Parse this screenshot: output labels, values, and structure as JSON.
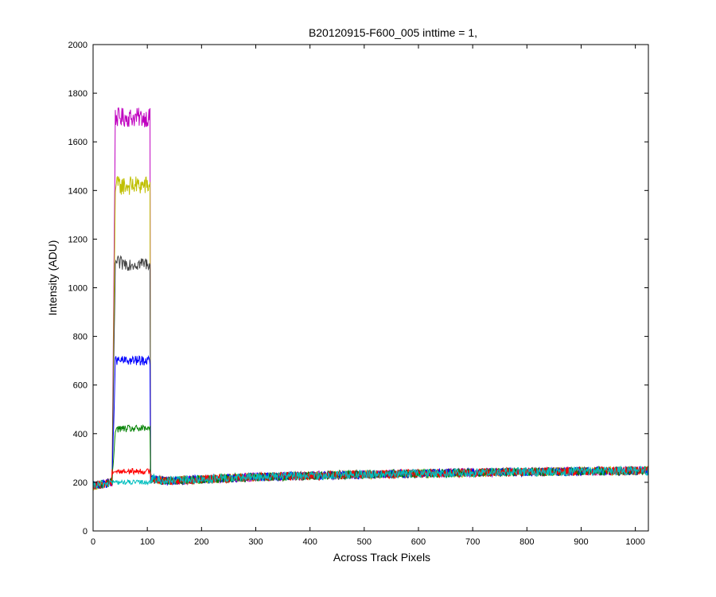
{
  "chart_data": {
    "type": "line",
    "title": "B20120915-F600_005 inttime = 1,",
    "xlabel": "Across Track Pixels",
    "ylabel": "Intensity (ADU)",
    "xlim": [
      0,
      1024
    ],
    "ylim": [
      0,
      2000
    ],
    "xticks": [
      0,
      100,
      200,
      300,
      400,
      500,
      600,
      700,
      800,
      900,
      1000
    ],
    "yticks": [
      0,
      200,
      400,
      600,
      800,
      1000,
      1200,
      1400,
      1600,
      1800,
      2000
    ],
    "grid": false,
    "legend": "none",
    "baseline": {
      "x": [
        0,
        35,
        100,
        110,
        130,
        300,
        500,
        700,
        900,
        1024
      ],
      "y": [
        185,
        200,
        215,
        215,
        205,
        222,
        232,
        240,
        245,
        248
      ]
    },
    "pulse_x_range": [
      35,
      105
    ],
    "series": [
      {
        "color": "#bf00bf",
        "plateau": 1700,
        "noise": 40
      },
      {
        "color": "#bfbf00",
        "plateau": 1420,
        "noise": 40
      },
      {
        "color": "#404040",
        "plateau": 1100,
        "noise": 30
      },
      {
        "color": "#0000ff",
        "plateau": 700,
        "noise": 20
      },
      {
        "color": "#008000",
        "plateau": 420,
        "noise": 15
      },
      {
        "color": "#ff0000",
        "plateau": 245,
        "noise": 12
      },
      {
        "color": "#00bfbf",
        "plateau": 200,
        "noise": 10
      }
    ]
  }
}
